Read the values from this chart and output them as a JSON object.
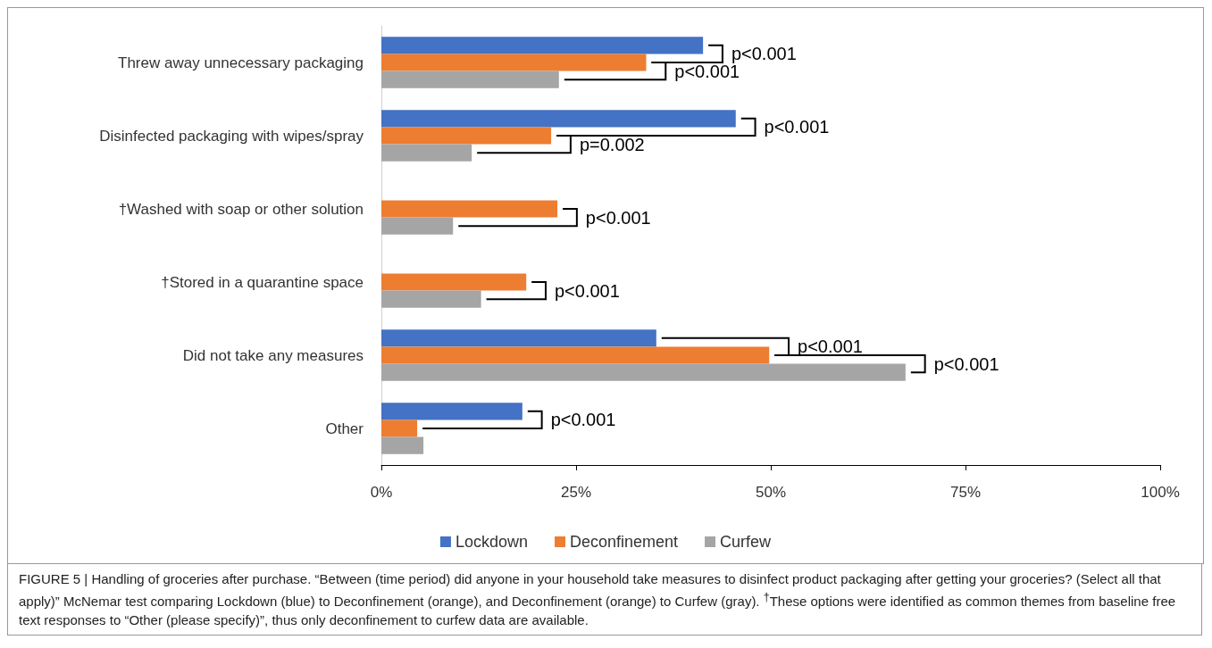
{
  "chart_data": {
    "type": "bar",
    "orientation": "horizontal",
    "categories": [
      "Threw away unnecessary packaging",
      "Disinfected packaging with wipes/spray",
      "†Washed with soap or other solution",
      "†Stored in a quarantine space",
      "Did not take any measures",
      "Other"
    ],
    "series": [
      {
        "name": "Lockdown",
        "color": "#4472c4",
        "values": [
          41.3,
          45.5,
          null,
          null,
          35.3,
          18.1
        ]
      },
      {
        "name": "Deconfinement",
        "color": "#ed7d31",
        "values": [
          34.0,
          21.8,
          22.6,
          18.6,
          49.8,
          4.6
        ]
      },
      {
        "name": "Curfew",
        "color": "#a5a5a5",
        "values": [
          22.8,
          11.6,
          9.2,
          12.8,
          67.3,
          5.4
        ]
      }
    ],
    "xlim": [
      0,
      100
    ],
    "xticks": [
      {
        "value": 0,
        "label": "0%"
      },
      {
        "value": 25,
        "label": "25%"
      },
      {
        "value": 50,
        "label": "50%"
      },
      {
        "value": 75,
        "label": "75%"
      },
      {
        "value": 100,
        "label": "100%"
      }
    ],
    "grid": false,
    "legend": "bottom",
    "annotations": [
      "p<0.001",
      "p<0.001",
      "p<0.001",
      "p=0.002",
      "p<0.001",
      "p<0.001",
      "p<0.001",
      "p<0.001",
      "p<0.001",
      "FIGURE 5 | Handling of groceries after purchase. “Between (time period) did anyone in your household take measures to disinfect product packaging after getting your groceries? (Select all that apply)” McNemar test comparing Lockdown (blue) to Deconfinement (orange), and Deconfinement (orange) to Curfew (gray). $^{†}$These options were identified as common themes from baseline free text responses to “Other (please specify)”, thus only deconfinement to curfew data are available."
    ]
  }
}
